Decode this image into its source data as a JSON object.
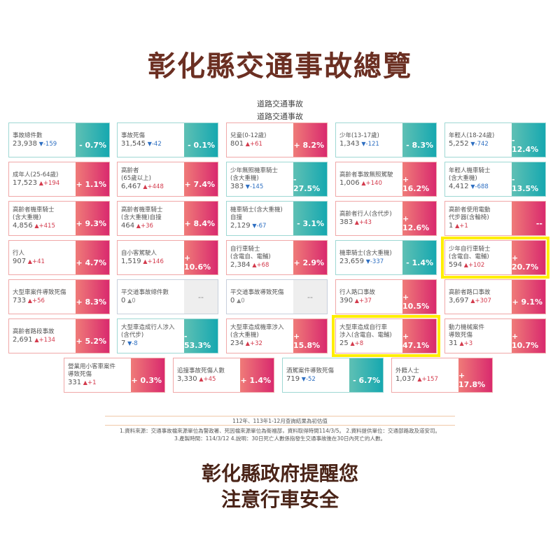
{
  "header": {
    "title": "彰化縣交通事故總覽",
    "subtitle_1": "道路交通事故",
    "subtitle_2": "道路交通事故"
  },
  "colors": {
    "title": "#6b2f22",
    "increase": "#d92a6e",
    "decrease": "#16a8b0",
    "highlight": "#ffee00"
  },
  "cards": [
    {
      "label": [
        "事故總件數"
      ],
      "value": "23,938",
      "change": "-159",
      "trend": "down",
      "pct": "- 0.7%"
    },
    {
      "label": [
        "事故死傷"
      ],
      "value": "31,545",
      "change": "-42",
      "trend": "down",
      "pct": "- 0.1%"
    },
    {
      "label": [
        "兒童(0-12歲)"
      ],
      "value": "801",
      "change": "+61",
      "trend": "up",
      "pct": "+ 8.2%"
    },
    {
      "label": [
        "少年(13-17歲)"
      ],
      "value": "1,343",
      "change": "-121",
      "trend": "down",
      "pct": "- 8.3%"
    },
    {
      "label": [
        "年輕人(18-24歲)"
      ],
      "value": "5,252",
      "change": "-742",
      "trend": "down",
      "pct": "- 12.4%"
    },
    {
      "label": [
        "成年人(25-64歲)"
      ],
      "value": "17,523",
      "change": "+194",
      "trend": "up",
      "pct": "+ 1.1%"
    },
    {
      "label": [
        "高齡者",
        "(65歲以上)"
      ],
      "value": "6,467",
      "change": "+448",
      "trend": "up",
      "pct": "+ 7.4%"
    },
    {
      "label": [
        "少年無照機車騎士",
        "(含大重機)"
      ],
      "value": "383",
      "change": "-145",
      "trend": "down",
      "pct": "- 27.5%"
    },
    {
      "label": [
        "高齡者事故無照駕駛"
      ],
      "value": "1,006",
      "change": "+140",
      "trend": "up",
      "pct": "+ 16.2%"
    },
    {
      "label": [
        "年輕人機車騎士",
        "(含大重機)"
      ],
      "value": "4,412",
      "change": "-688",
      "trend": "down",
      "pct": "- 13.5%"
    },
    {
      "label": [
        "高齡者機車騎士",
        "(含大重機)"
      ],
      "value": "4,856",
      "change": "+415",
      "trend": "up",
      "pct": "+ 9.3%"
    },
    {
      "label": [
        "高齡者機車騎士",
        "(含大重機)自撞"
      ],
      "value": "464",
      "change": "+36",
      "trend": "up",
      "pct": "+ 8.4%"
    },
    {
      "label": [
        "機車騎士(含大重機)",
        "自撞"
      ],
      "value": "2,129",
      "change": "-67",
      "trend": "down",
      "pct": "- 3.1%"
    },
    {
      "label": [
        "高齡者行人(含代步)"
      ],
      "value": "383",
      "change": "+43",
      "trend": "up",
      "pct": "+ 12.6%"
    },
    {
      "label": [
        "高齡者使用電動",
        "代步器(含輪椅)"
      ],
      "value": "1",
      "change": "+1",
      "trend": "up",
      "pct": "--"
    },
    {
      "label": [
        "行人"
      ],
      "value": "907",
      "change": "+41",
      "trend": "up",
      "pct": "+ 4.7%"
    },
    {
      "label": [
        "自小客駕駛人"
      ],
      "value": "1,519",
      "change": "+146",
      "trend": "up",
      "pct": "+ 10.6%"
    },
    {
      "label": [
        "自行車騎士",
        "(含電自、電輔)"
      ],
      "value": "2,384",
      "change": "+68",
      "trend": "up",
      "pct": "+ 2.9%"
    },
    {
      "label": [
        "機車騎士(含大重機)"
      ],
      "value": "23,659",
      "change": "-337",
      "trend": "down",
      "pct": "- 1.4%"
    },
    {
      "label": [
        "少年自行車騎士",
        "(含電自、電輔)"
      ],
      "value": "594",
      "change": "+102",
      "trend": "up",
      "pct": "+ 20.7%",
      "highlight": true
    },
    {
      "label": [
        "大型車案件導致死傷"
      ],
      "value": "733",
      "change": "+56",
      "trend": "up",
      "pct": "+ 8.3%"
    },
    {
      "label": [
        "平交道事故總件數"
      ],
      "value": "0",
      "change": "0",
      "trend": "zero",
      "pct": "--"
    },
    {
      "label": [
        "平交道事故導致死傷"
      ],
      "value": "0",
      "change": "0",
      "trend": "zero",
      "pct": "--"
    },
    {
      "label": [
        "行人路口事故"
      ],
      "value": "390",
      "change": "+37",
      "trend": "up",
      "pct": "+ 10.5%"
    },
    {
      "label": [
        "高齡者路口事故"
      ],
      "value": "3,697",
      "change": "+307",
      "trend": "up",
      "pct": "+ 9.1%"
    },
    {
      "label": [
        "高齡者路段事故"
      ],
      "value": "2,691",
      "change": "+134",
      "trend": "up",
      "pct": "+ 5.2%"
    },
    {
      "label": [
        "大型車造成行人涉入",
        "(含代步)"
      ],
      "value": "7",
      "change": "-8",
      "trend": "down",
      "pct": "- 53.3%"
    },
    {
      "label": [
        "大型車造成機車涉入",
        "(含大重機)"
      ],
      "value": "234",
      "change": "+32",
      "trend": "up",
      "pct": "+ 15.8%"
    },
    {
      "label": [
        "大型車造成自行車",
        "涉入(含電自、電輔)"
      ],
      "value": "25",
      "change": "+8",
      "trend": "up",
      "pct": "+ 47.1%",
      "highlight": true
    },
    {
      "label": [
        "動力機械案件",
        "導致死傷"
      ],
      "value": "31",
      "change": "+3",
      "trend": "up",
      "pct": "+ 10.7%"
    },
    {
      "label": [
        "營業用小客車案件",
        "導致死傷"
      ],
      "value": "331",
      "change": "+1",
      "trend": "up",
      "pct": "+ 0.3%"
    },
    {
      "label": [
        "追撞事故死傷人數"
      ],
      "value": "3,330",
      "change": "+45",
      "trend": "up",
      "pct": "+ 1.4%"
    },
    {
      "label": [
        "酒駕案件導致死傷"
      ],
      "value": "719",
      "change": "-52",
      "trend": "down",
      "pct": "- 6.7%"
    },
    {
      "label": [
        "外籍人士"
      ],
      "value": "1,037",
      "change": "+157",
      "trend": "up",
      "pct": "+ 17.8%"
    }
  ],
  "footer": {
    "estimate_note": "112年、113年1-12月查詢結果為初估值",
    "source_line_1": "1.資料來源：交通事故檔來源單位為警政署、死因檔來源單位為衛福部，資料取得時間114/3/5。 2.資料提供單位：交通部路政及道安司。",
    "source_line_2": "3.產製時間：114/3/12 4.說明：30日死亡人數係指發生交通事故後在30日內死亡的人數。"
  },
  "slogan": {
    "line_1": "彰化縣政府提醒您",
    "line_2": "注意行車安全"
  }
}
